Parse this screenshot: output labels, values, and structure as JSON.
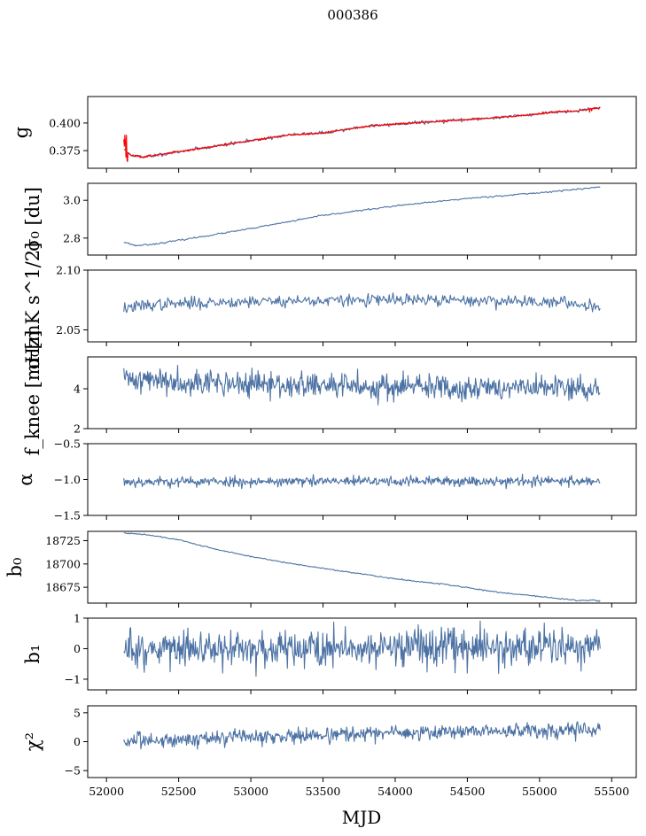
{
  "figure_title": "000386",
  "colors": {
    "series": "#4c72a4",
    "fit": "#ff0000",
    "axis": "#000000"
  },
  "chart_data": [
    {
      "id": "g",
      "type": "line",
      "ylabel": "g",
      "xlim": [
        51870,
        55670
      ],
      "ylim": [
        0.359,
        0.424
      ],
      "yticks": [
        0.375,
        0.4
      ],
      "ytick_labels": [
        "0.375",
        "0.400"
      ],
      "x_start": 52120,
      "x_end": 55420,
      "n": 400,
      "knots": [
        [
          52120,
          0.376
        ],
        [
          52170,
          0.371
        ],
        [
          52250,
          0.369
        ],
        [
          52500,
          0.374
        ],
        [
          52700,
          0.378
        ],
        [
          53000,
          0.384
        ],
        [
          53250,
          0.389
        ],
        [
          53500,
          0.391
        ],
        [
          53800,
          0.397
        ],
        [
          54000,
          0.399
        ],
        [
          54250,
          0.401
        ],
        [
          54500,
          0.403
        ],
        [
          54700,
          0.405
        ],
        [
          54900,
          0.407
        ],
        [
          55100,
          0.41
        ],
        [
          55250,
          0.411
        ],
        [
          55420,
          0.414
        ]
      ],
      "noise": 0.0008,
      "seed": 11,
      "has_fit": true
    },
    {
      "id": "sigma0_du",
      "type": "line",
      "ylabel": "σ₀ [du]",
      "xlim": [
        51870,
        55670
      ],
      "ylim": [
        2.71,
        3.09
      ],
      "yticks": [
        2.8,
        3.0
      ],
      "ytick_labels": [
        "2.8",
        "3.0"
      ],
      "x_start": 52120,
      "x_end": 55420,
      "n": 400,
      "knots": [
        [
          52120,
          2.78
        ],
        [
          52200,
          2.76
        ],
        [
          52350,
          2.77
        ],
        [
          52600,
          2.8
        ],
        [
          53000,
          2.85
        ],
        [
          53500,
          2.92
        ],
        [
          54000,
          2.97
        ],
        [
          54500,
          3.01
        ],
        [
          55000,
          3.04
        ],
        [
          55420,
          3.07
        ]
      ],
      "noise": 0.002,
      "seed": 23
    },
    {
      "id": "sigma0_mk",
      "type": "line",
      "ylabel": "σ₀[mK s^1/2]",
      "xlim": [
        51870,
        55670
      ],
      "ylim": [
        2.04,
        2.1
      ],
      "yticks": [
        2.05,
        2.1
      ],
      "ytick_labels": [
        "2.05",
        "2.10"
      ],
      "x_start": 52120,
      "x_end": 55420,
      "n": 500,
      "knots": [
        [
          52120,
          2.068
        ],
        [
          52300,
          2.071
        ],
        [
          53000,
          2.074
        ],
        [
          54000,
          2.075
        ],
        [
          55000,
          2.074
        ],
        [
          55420,
          2.07
        ]
      ],
      "noise": 0.0025,
      "seed": 37
    },
    {
      "id": "fknee",
      "type": "line",
      "ylabel": "f_knee [mHz]",
      "xlim": [
        51870,
        55670
      ],
      "ylim": [
        2.0,
        5.6
      ],
      "yticks": [
        2,
        4
      ],
      "ytick_labels": [
        "2",
        "4"
      ],
      "x_start": 52120,
      "x_end": 55420,
      "n": 700,
      "knots": [
        [
          52120,
          4.5
        ],
        [
          52500,
          4.4
        ],
        [
          53000,
          4.2
        ],
        [
          54000,
          4.1
        ],
        [
          55420,
          4.0
        ]
      ],
      "noise": 0.32,
      "seed": 41
    },
    {
      "id": "alpha",
      "type": "line",
      "ylabel": "α",
      "xlim": [
        51870,
        55670
      ],
      "ylim": [
        -1.5,
        -0.5
      ],
      "yticks": [
        -1.5,
        -1.0,
        -0.5
      ],
      "ytick_labels": [
        "−1.5",
        "−1.0",
        "−0.5"
      ],
      "x_start": 52120,
      "x_end": 55420,
      "n": 700,
      "knots": [
        [
          52120,
          -1.03
        ],
        [
          55420,
          -1.02
        ]
      ],
      "noise": 0.035,
      "seed": 53
    },
    {
      "id": "b0",
      "type": "line",
      "ylabel": "b₀",
      "xlim": [
        51870,
        55670
      ],
      "ylim": [
        18658,
        18735
      ],
      "yticks": [
        18675,
        18700,
        18725
      ],
      "ytick_labels": [
        "18675",
        "18700",
        "18725"
      ],
      "x_start": 52120,
      "x_end": 55420,
      "n": 400,
      "knots": [
        [
          52120,
          18733
        ],
        [
          52250,
          18732
        ],
        [
          52500,
          18726
        ],
        [
          52750,
          18716
        ],
        [
          53000,
          18708
        ],
        [
          53300,
          18700
        ],
        [
          53600,
          18693
        ],
        [
          54000,
          18684
        ],
        [
          54300,
          18679
        ],
        [
          54700,
          18670
        ],
        [
          55000,
          18665
        ],
        [
          55250,
          18661
        ],
        [
          55420,
          18661
        ]
      ],
      "noise": 0.35,
      "seed": 61
    },
    {
      "id": "b1",
      "type": "line",
      "ylabel": "b₁",
      "xlim": [
        51870,
        55670
      ],
      "ylim": [
        -1.35,
        1.0
      ],
      "yticks": [
        -1,
        0,
        1
      ],
      "ytick_labels": [
        "−1",
        "0",
        "1"
      ],
      "x_start": 52120,
      "x_end": 55420,
      "n": 700,
      "knots": [
        [
          52120,
          0.0
        ],
        [
          55420,
          0.0
        ]
      ],
      "noise": 0.3,
      "seed": 71
    },
    {
      "id": "chi2",
      "type": "line",
      "ylabel": "χ²",
      "xlim": [
        51870,
        55670
      ],
      "ylim": [
        -6.2,
        6.2
      ],
      "yticks": [
        -5,
        0,
        5
      ],
      "ytick_labels": [
        "−5",
        "0",
        "5"
      ],
      "x_start": 52120,
      "x_end": 55420,
      "n": 700,
      "knots": [
        [
          52120,
          0.0
        ],
        [
          52500,
          0.4
        ],
        [
          53000,
          0.8
        ],
        [
          54000,
          1.5
        ],
        [
          55000,
          2.0
        ],
        [
          55420,
          2.2
        ]
      ],
      "noise": 0.65,
      "seed": 83,
      "xticks": [
        52000,
        52500,
        53000,
        53500,
        54000,
        54500,
        55000,
        55500
      ],
      "xtick_labels": [
        "52000",
        "52500",
        "53000",
        "53500",
        "54000",
        "54500",
        "55000",
        "55500"
      ],
      "xlabel": "MJD"
    }
  ]
}
